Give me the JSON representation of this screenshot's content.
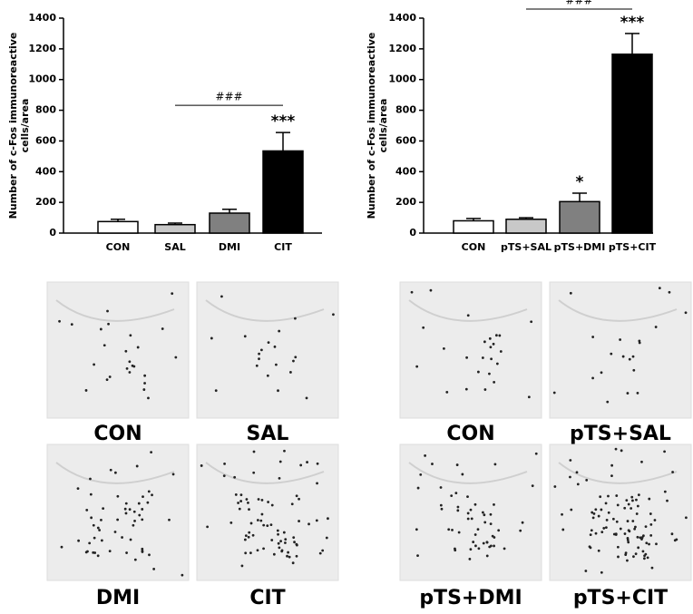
{
  "chart_data": [
    {
      "type": "bar",
      "ylabel": [
        "Number of c-Fos immunoreactive",
        "cells/area"
      ],
      "categories": [
        "CON",
        "SAL",
        "DMI",
        "CIT"
      ],
      "values": [
        75,
        55,
        130,
        535
      ],
      "errors": [
        15,
        10,
        25,
        120
      ],
      "colors": [
        "#ffffff",
        "#c8c8c8",
        "#808080",
        "#000000"
      ],
      "significance": [
        null,
        null,
        null,
        "***"
      ],
      "bracket": "###",
      "ylim": [
        0,
        1400
      ],
      "yticks": [
        0,
        200,
        400,
        600,
        800,
        1000,
        1200,
        1400
      ]
    },
    {
      "type": "bar",
      "ylabel": [
        "Number of c-Fos immunoreactive",
        "cells/area"
      ],
      "categories": [
        "CON",
        "pTS+SAL",
        "pTS+DMI",
        "pTS+CIT"
      ],
      "values": [
        80,
        90,
        205,
        1165
      ],
      "errors": [
        15,
        10,
        55,
        135
      ],
      "colors": [
        "#ffffff",
        "#c8c8c8",
        "#808080",
        "#000000"
      ],
      "significance": [
        null,
        null,
        "*",
        "***"
      ],
      "bracket": "###",
      "ylim": [
        0,
        1400
      ],
      "yticks": [
        0,
        200,
        400,
        600,
        800,
        1000,
        1200,
        1400
      ]
    }
  ],
  "micrographs": [
    [
      "CON",
      "SAL",
      "DMI",
      "CIT"
    ],
    [
      "CON",
      "pTS+SAL",
      "pTS+DMI",
      "pTS+CIT"
    ]
  ]
}
